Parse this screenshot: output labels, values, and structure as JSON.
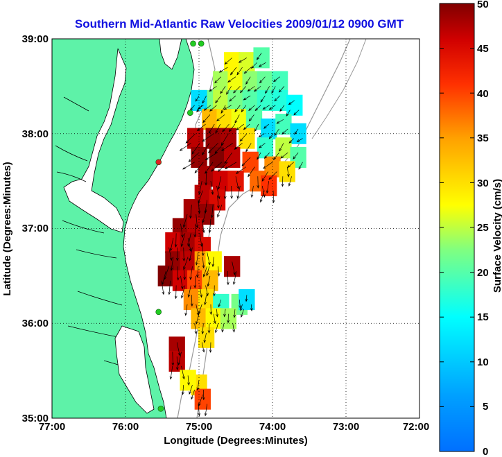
{
  "chart_data": {
    "type": "heatmap",
    "title": "Southern Mid-Atlantic Raw Velocities 2009/01/12 0900 GMT",
    "xlabel": "Longitude (Degrees:Minutes)",
    "ylabel": "Latitude (Degrees:Minutes)",
    "colorbar_label": "Surface Velocity (cm/s)",
    "x_ticks": [
      "77:00",
      "76:00",
      "75:00",
      "74:00",
      "73:00",
      "72:00"
    ],
    "y_ticks": [
      "39:00",
      "38:00",
      "37:00",
      "36:00",
      "35:00"
    ],
    "colorbar_ticks": [
      "50",
      "45",
      "40",
      "35",
      "30",
      "25",
      "20",
      "15",
      "10",
      "5",
      "0"
    ],
    "xlim": [
      -77,
      -72
    ],
    "ylim": [
      35,
      39
    ],
    "clim": [
      0,
      50
    ],
    "colormap": "jet",
    "grid": true,
    "grid_style": "dotted",
    "land_color": "#5ef2a8",
    "land_outline_color": "#000000",
    "bathymetry_color": "#9a9a9a",
    "vector_color": "#000000",
    "station_color": "#22cc22",
    "station_alt_color": "#dd2222",
    "cells": [
      {
        "lon": -74.55,
        "lat": 38.75,
        "v": 28
      },
      {
        "lon": -74.35,
        "lat": 38.75,
        "v": 26
      },
      {
        "lon": -74.15,
        "lat": 38.8,
        "v": 20
      },
      {
        "lon": -74.7,
        "lat": 38.55,
        "v": 24
      },
      {
        "lon": -74.5,
        "lat": 38.55,
        "v": 27
      },
      {
        "lon": -74.3,
        "lat": 38.55,
        "v": 23
      },
      {
        "lon": -74.1,
        "lat": 38.55,
        "v": 21
      },
      {
        "lon": -73.9,
        "lat": 38.55,
        "v": 19
      },
      {
        "lon": -74.9,
        "lat": 38.35,
        "v": 22
      },
      {
        "lon": -74.7,
        "lat": 38.35,
        "v": 25
      },
      {
        "lon": -74.5,
        "lat": 38.35,
        "v": 22
      },
      {
        "lon": -74.3,
        "lat": 38.35,
        "v": 20
      },
      {
        "lon": -74.1,
        "lat": 38.35,
        "v": 18
      },
      {
        "lon": -73.9,
        "lat": 38.35,
        "v": 17
      },
      {
        "lon": -73.7,
        "lat": 38.3,
        "v": 15
      },
      {
        "lon": -75.0,
        "lat": 38.35,
        "v": 12
      },
      {
        "lon": -74.85,
        "lat": 38.15,
        "v": 33
      },
      {
        "lon": -74.65,
        "lat": 38.15,
        "v": 30
      },
      {
        "lon": -74.45,
        "lat": 38.15,
        "v": 27
      },
      {
        "lon": -74.25,
        "lat": 38.15,
        "v": 20
      },
      {
        "lon": -74.05,
        "lat": 38.05,
        "v": 12
      },
      {
        "lon": -73.85,
        "lat": 38.1,
        "v": 19
      },
      {
        "lon": -73.65,
        "lat": 38.0,
        "v": 12
      },
      {
        "lon": -75.05,
        "lat": 37.95,
        "v": 47
      },
      {
        "lon": -74.8,
        "lat": 37.95,
        "v": 49
      },
      {
        "lon": -74.6,
        "lat": 37.95,
        "v": 48
      },
      {
        "lon": -74.35,
        "lat": 37.95,
        "v": 30
      },
      {
        "lon": -74.1,
        "lat": 37.85,
        "v": 18
      },
      {
        "lon": -73.85,
        "lat": 37.85,
        "v": 25
      },
      {
        "lon": -73.65,
        "lat": 37.75,
        "v": 20
      },
      {
        "lon": -75.0,
        "lat": 37.75,
        "v": 49
      },
      {
        "lon": -74.75,
        "lat": 37.75,
        "v": 50
      },
      {
        "lon": -74.55,
        "lat": 37.75,
        "v": 47
      },
      {
        "lon": -74.3,
        "lat": 37.7,
        "v": 40
      },
      {
        "lon": -74.0,
        "lat": 37.65,
        "v": 36
      },
      {
        "lon": -73.8,
        "lat": 37.6,
        "v": 30
      },
      {
        "lon": -74.9,
        "lat": 37.55,
        "v": 48
      },
      {
        "lon": -74.7,
        "lat": 37.5,
        "v": 46
      },
      {
        "lon": -74.5,
        "lat": 37.5,
        "v": 44
      },
      {
        "lon": -74.2,
        "lat": 37.5,
        "v": 38
      },
      {
        "lon": -74.05,
        "lat": 37.45,
        "v": 41
      },
      {
        "lon": -74.95,
        "lat": 37.35,
        "v": 47
      },
      {
        "lon": -74.75,
        "lat": 37.3,
        "v": 45
      },
      {
        "lon": -75.1,
        "lat": 37.2,
        "v": 48
      },
      {
        "lon": -74.9,
        "lat": 37.15,
        "v": 49
      },
      {
        "lon": -75.25,
        "lat": 37.0,
        "v": 49
      },
      {
        "lon": -75.05,
        "lat": 37.0,
        "v": 47
      },
      {
        "lon": -75.35,
        "lat": 36.85,
        "v": 46
      },
      {
        "lon": -75.15,
        "lat": 36.85,
        "v": 48
      },
      {
        "lon": -74.95,
        "lat": 36.8,
        "v": 45
      },
      {
        "lon": -75.35,
        "lat": 36.65,
        "v": 49
      },
      {
        "lon": -75.15,
        "lat": 36.65,
        "v": 47
      },
      {
        "lon": -74.95,
        "lat": 36.65,
        "v": 35
      },
      {
        "lon": -74.8,
        "lat": 36.65,
        "v": 28
      },
      {
        "lon": -75.45,
        "lat": 36.5,
        "v": 50
      },
      {
        "lon": -75.25,
        "lat": 36.45,
        "v": 46
      },
      {
        "lon": -75.05,
        "lat": 36.45,
        "v": 40
      },
      {
        "lon": -74.85,
        "lat": 36.45,
        "v": 33
      },
      {
        "lon": -74.55,
        "lat": 36.6,
        "v": 48
      },
      {
        "lon": -75.1,
        "lat": 36.25,
        "v": 36
      },
      {
        "lon": -74.9,
        "lat": 36.25,
        "v": 30
      },
      {
        "lon": -74.7,
        "lat": 36.2,
        "v": 18
      },
      {
        "lon": -74.45,
        "lat": 36.2,
        "v": 22
      },
      {
        "lon": -74.35,
        "lat": 36.25,
        "v": 12
      },
      {
        "lon": -75.0,
        "lat": 36.05,
        "v": 33
      },
      {
        "lon": -74.8,
        "lat": 36.05,
        "v": 28
      },
      {
        "lon": -74.6,
        "lat": 36.05,
        "v": 24
      },
      {
        "lon": -74.9,
        "lat": 35.85,
        "v": 30
      },
      {
        "lon": -75.3,
        "lat": 35.75,
        "v": 48
      },
      {
        "lon": -75.3,
        "lat": 35.6,
        "v": 47
      },
      {
        "lon": -75.0,
        "lat": 35.35,
        "v": 30
      },
      {
        "lon": -74.95,
        "lat": 35.2,
        "v": 40
      },
      {
        "lon": -75.15,
        "lat": 35.4,
        "v": 28
      }
    ],
    "stations": [
      {
        "lon": -75.08,
        "lat": 38.95
      },
      {
        "lon": -74.97,
        "lat": 38.95
      },
      {
        "lon": -75.12,
        "lat": 38.22
      },
      {
        "lon": -75.55,
        "lat": 37.7
      },
      {
        "lon": -75.55,
        "lat": 36.12
      },
      {
        "lon": -75.52,
        "lat": 35.1
      }
    ]
  }
}
